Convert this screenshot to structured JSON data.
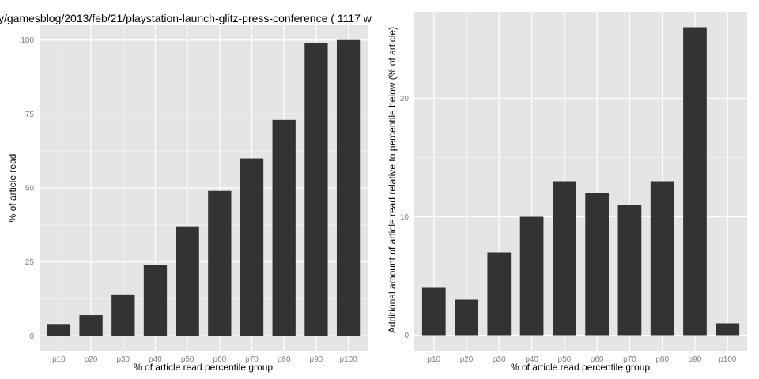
{
  "colors": {
    "panel_background": "#e5e5e5",
    "grid_major": "#ffffff",
    "grid_minor": "#f2f2f2",
    "bar_fill": "#333333",
    "tick_text": "#7f7f7f"
  },
  "chart_data": [
    {
      "type": "bar",
      "title": "y/gamesblog/2013/feb/21/playstation-launch-glitz-press-conference ( 1117 w",
      "xlabel": "% of article read percentile group",
      "ylabel": "% of article read",
      "categories": [
        "p10",
        "p20",
        "p30",
        "p40",
        "p50",
        "p60",
        "p70",
        "p80",
        "p90",
        "p100"
      ],
      "values": [
        4,
        7,
        14,
        24,
        37,
        49,
        60,
        73,
        99,
        100
      ],
      "ylim": [
        -5,
        105
      ],
      "yticks": [
        0,
        25,
        50,
        75,
        100
      ],
      "grid": true,
      "legend": "none"
    },
    {
      "type": "bar",
      "title": "",
      "xlabel": "% of article read percentile group",
      "ylabel": "Additional amount of article read relative to percentile below (% of article)",
      "categories": [
        "p10",
        "p20",
        "p30",
        "p40",
        "p50",
        "p60",
        "p70",
        "p80",
        "p90",
        "p100"
      ],
      "values": [
        4,
        3,
        7,
        10,
        13,
        12,
        11,
        13,
        26,
        1
      ],
      "ylim": [
        -1.3,
        27.3
      ],
      "yticks": [
        0,
        10,
        20
      ],
      "grid": true,
      "legend": "none"
    }
  ]
}
